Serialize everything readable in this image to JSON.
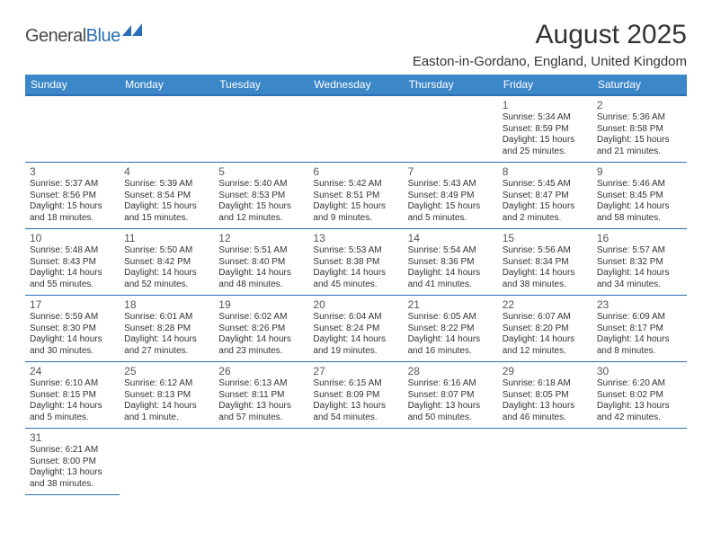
{
  "logo": {
    "part1": "General",
    "part2": "Blue"
  },
  "title": "August 2025",
  "location": "Easton-in-Gordano, England, United Kingdom",
  "colors": {
    "header_bg": "#3b87c8",
    "header_border": "#2a6fb5",
    "cell_border": "#2a6fb5",
    "text": "#333333",
    "daynum": "#555555",
    "logo_gray": "#4a4a4a",
    "logo_blue": "#2a6fb5"
  },
  "fonts": {
    "title_size_pt": 22,
    "location_size_pt": 11,
    "dayhead_size_pt": 9,
    "daynum_size_pt": 9,
    "info_size_pt": 7.5
  },
  "dayNames": [
    "Sunday",
    "Monday",
    "Tuesday",
    "Wednesday",
    "Thursday",
    "Friday",
    "Saturday"
  ],
  "weeks": [
    [
      null,
      null,
      null,
      null,
      null,
      {
        "n": "1",
        "sr": "Sunrise: 5:34 AM",
        "ss": "Sunset: 8:59 PM",
        "dl": "Daylight: 15 hours and 25 minutes."
      },
      {
        "n": "2",
        "sr": "Sunrise: 5:36 AM",
        "ss": "Sunset: 8:58 PM",
        "dl": "Daylight: 15 hours and 21 minutes."
      }
    ],
    [
      {
        "n": "3",
        "sr": "Sunrise: 5:37 AM",
        "ss": "Sunset: 8:56 PM",
        "dl": "Daylight: 15 hours and 18 minutes."
      },
      {
        "n": "4",
        "sr": "Sunrise: 5:39 AM",
        "ss": "Sunset: 8:54 PM",
        "dl": "Daylight: 15 hours and 15 minutes."
      },
      {
        "n": "5",
        "sr": "Sunrise: 5:40 AM",
        "ss": "Sunset: 8:53 PM",
        "dl": "Daylight: 15 hours and 12 minutes."
      },
      {
        "n": "6",
        "sr": "Sunrise: 5:42 AM",
        "ss": "Sunset: 8:51 PM",
        "dl": "Daylight: 15 hours and 9 minutes."
      },
      {
        "n": "7",
        "sr": "Sunrise: 5:43 AM",
        "ss": "Sunset: 8:49 PM",
        "dl": "Daylight: 15 hours and 5 minutes."
      },
      {
        "n": "8",
        "sr": "Sunrise: 5:45 AM",
        "ss": "Sunset: 8:47 PM",
        "dl": "Daylight: 15 hours and 2 minutes."
      },
      {
        "n": "9",
        "sr": "Sunrise: 5:46 AM",
        "ss": "Sunset: 8:45 PM",
        "dl": "Daylight: 14 hours and 58 minutes."
      }
    ],
    [
      {
        "n": "10",
        "sr": "Sunrise: 5:48 AM",
        "ss": "Sunset: 8:43 PM",
        "dl": "Daylight: 14 hours and 55 minutes."
      },
      {
        "n": "11",
        "sr": "Sunrise: 5:50 AM",
        "ss": "Sunset: 8:42 PM",
        "dl": "Daylight: 14 hours and 52 minutes."
      },
      {
        "n": "12",
        "sr": "Sunrise: 5:51 AM",
        "ss": "Sunset: 8:40 PM",
        "dl": "Daylight: 14 hours and 48 minutes."
      },
      {
        "n": "13",
        "sr": "Sunrise: 5:53 AM",
        "ss": "Sunset: 8:38 PM",
        "dl": "Daylight: 14 hours and 45 minutes."
      },
      {
        "n": "14",
        "sr": "Sunrise: 5:54 AM",
        "ss": "Sunset: 8:36 PM",
        "dl": "Daylight: 14 hours and 41 minutes."
      },
      {
        "n": "15",
        "sr": "Sunrise: 5:56 AM",
        "ss": "Sunset: 8:34 PM",
        "dl": "Daylight: 14 hours and 38 minutes."
      },
      {
        "n": "16",
        "sr": "Sunrise: 5:57 AM",
        "ss": "Sunset: 8:32 PM",
        "dl": "Daylight: 14 hours and 34 minutes."
      }
    ],
    [
      {
        "n": "17",
        "sr": "Sunrise: 5:59 AM",
        "ss": "Sunset: 8:30 PM",
        "dl": "Daylight: 14 hours and 30 minutes."
      },
      {
        "n": "18",
        "sr": "Sunrise: 6:01 AM",
        "ss": "Sunset: 8:28 PM",
        "dl": "Daylight: 14 hours and 27 minutes."
      },
      {
        "n": "19",
        "sr": "Sunrise: 6:02 AM",
        "ss": "Sunset: 8:26 PM",
        "dl": "Daylight: 14 hours and 23 minutes."
      },
      {
        "n": "20",
        "sr": "Sunrise: 6:04 AM",
        "ss": "Sunset: 8:24 PM",
        "dl": "Daylight: 14 hours and 19 minutes."
      },
      {
        "n": "21",
        "sr": "Sunrise: 6:05 AM",
        "ss": "Sunset: 8:22 PM",
        "dl": "Daylight: 14 hours and 16 minutes."
      },
      {
        "n": "22",
        "sr": "Sunrise: 6:07 AM",
        "ss": "Sunset: 8:20 PM",
        "dl": "Daylight: 14 hours and 12 minutes."
      },
      {
        "n": "23",
        "sr": "Sunrise: 6:09 AM",
        "ss": "Sunset: 8:17 PM",
        "dl": "Daylight: 14 hours and 8 minutes."
      }
    ],
    [
      {
        "n": "24",
        "sr": "Sunrise: 6:10 AM",
        "ss": "Sunset: 8:15 PM",
        "dl": "Daylight: 14 hours and 5 minutes."
      },
      {
        "n": "25",
        "sr": "Sunrise: 6:12 AM",
        "ss": "Sunset: 8:13 PM",
        "dl": "Daylight: 14 hours and 1 minute."
      },
      {
        "n": "26",
        "sr": "Sunrise: 6:13 AM",
        "ss": "Sunset: 8:11 PM",
        "dl": "Daylight: 13 hours and 57 minutes."
      },
      {
        "n": "27",
        "sr": "Sunrise: 6:15 AM",
        "ss": "Sunset: 8:09 PM",
        "dl": "Daylight: 13 hours and 54 minutes."
      },
      {
        "n": "28",
        "sr": "Sunrise: 6:16 AM",
        "ss": "Sunset: 8:07 PM",
        "dl": "Daylight: 13 hours and 50 minutes."
      },
      {
        "n": "29",
        "sr": "Sunrise: 6:18 AM",
        "ss": "Sunset: 8:05 PM",
        "dl": "Daylight: 13 hours and 46 minutes."
      },
      {
        "n": "30",
        "sr": "Sunrise: 6:20 AM",
        "ss": "Sunset: 8:02 PM",
        "dl": "Daylight: 13 hours and 42 minutes."
      }
    ],
    [
      {
        "n": "31",
        "sr": "Sunrise: 6:21 AM",
        "ss": "Sunset: 8:00 PM",
        "dl": "Daylight: 13 hours and 38 minutes."
      },
      null,
      null,
      null,
      null,
      null,
      null
    ]
  ]
}
